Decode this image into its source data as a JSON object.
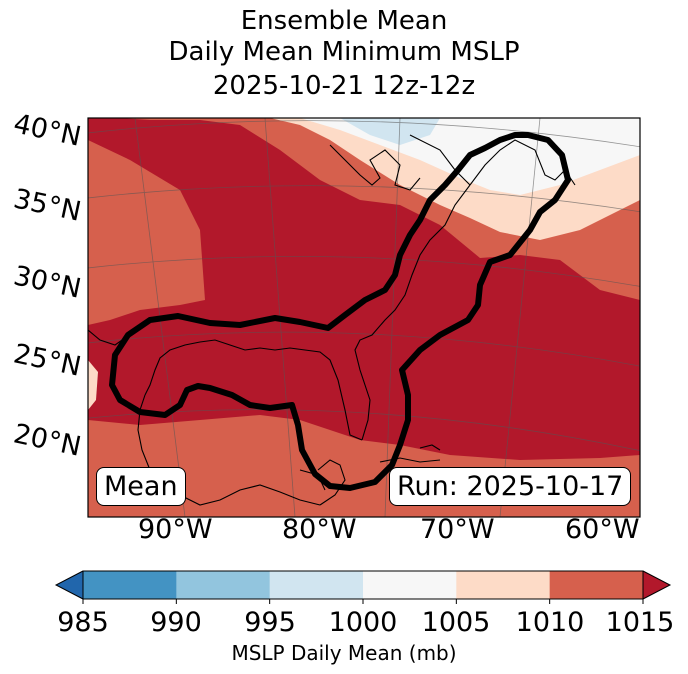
{
  "title": {
    "line1": "Ensemble Mean",
    "line2": "Daily Mean Minimum MSLP",
    "line3": "2025-10-21 12z-12z"
  },
  "map": {
    "lat_labels": [
      "40°N",
      "35°N",
      "30°N",
      "25°N",
      "20°N"
    ],
    "lon_labels": [
      "90°W",
      "80°W",
      "70°W",
      "60°W"
    ],
    "mean_tag": "Mean",
    "run_tag": "Run: 2025-10-17",
    "fill_colors": {
      "lt985": "#2166ac",
      "985_990": "#4393c3",
      "990_995": "#92c5de",
      "995_1000": "#d1e5f0",
      "1000_1005": "#f7f7f7",
      "1005_1010": "#fddbc7",
      "1010_1015": "#d6604d",
      "gt1015": "#b2182b"
    }
  },
  "colorbar": {
    "ticks": [
      "985",
      "990",
      "995",
      "1000",
      "1005",
      "1010",
      "1015"
    ],
    "colors": [
      "#4393c3",
      "#92c5de",
      "#d1e5f0",
      "#f7f7f7",
      "#fddbc7",
      "#d6604d"
    ],
    "under_color": "#2166ac",
    "over_color": "#b2182b",
    "label": "MSLP Daily Mean (mb)"
  }
}
